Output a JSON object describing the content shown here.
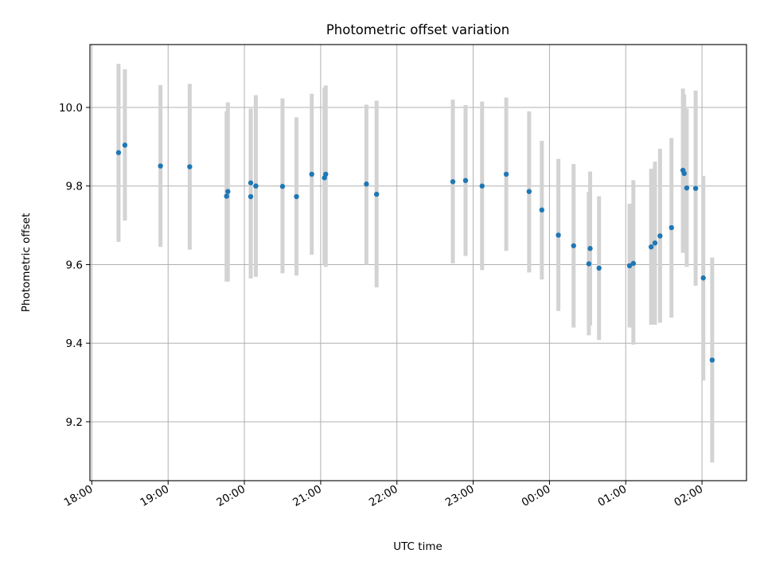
{
  "chart_data": {
    "type": "scatter",
    "title": "Photometric offset variation",
    "xlabel": "UTC time",
    "ylabel": "Photometric offset",
    "x_ticks": [
      "18:00",
      "19:00",
      "20:00",
      "21:00",
      "22:00",
      "23:00",
      "00:00",
      "01:00",
      "02:00"
    ],
    "y_ticks": [
      "9.2",
      "9.4",
      "9.6",
      "9.8",
      "10.0"
    ],
    "xlim": [
      "18:00",
      "02:30"
    ],
    "ylim": [
      9.05,
      10.16
    ],
    "grid": true,
    "colors": {
      "point": "#1f77b4",
      "errorbar": "#d3d3d3",
      "grid": "#b0b0b0"
    },
    "series": [
      {
        "points": [
          {
            "t": "18:21",
            "y": 9.885,
            "lo": 9.658,
            "hi": 10.111
          },
          {
            "t": "18:26",
            "y": 9.904,
            "lo": 9.712,
            "hi": 10.097
          },
          {
            "t": "18:54",
            "y": 9.851,
            "lo": 9.645,
            "hi": 10.057
          },
          {
            "t": "19:17",
            "y": 9.849,
            "lo": 9.638,
            "hi": 10.06
          },
          {
            "t": "19:46",
            "y": 9.774,
            "lo": 9.557,
            "hi": 9.99
          },
          {
            "t": "19:47",
            "y": 9.786,
            "lo": 9.557,
            "hi": 10.013
          },
          {
            "t": "20:05",
            "y": 9.808,
            "lo": 9.565,
            "hi": 9.997
          },
          {
            "t": "20:05",
            "y": 9.773,
            "lo": 9.565,
            "hi": 9.997
          },
          {
            "t": "20:09",
            "y": 9.8,
            "lo": 9.569,
            "hi": 10.031
          },
          {
            "t": "20:30",
            "y": 9.799,
            "lo": 9.578,
            "hi": 10.023
          },
          {
            "t": "20:41",
            "y": 9.773,
            "lo": 9.572,
            "hi": 9.975
          },
          {
            "t": "20:53",
            "y": 9.83,
            "lo": 9.625,
            "hi": 10.035
          },
          {
            "t": "21:03",
            "y": 9.821,
            "lo": 9.6,
            "hi": 10.05
          },
          {
            "t": "21:04",
            "y": 9.83,
            "lo": 9.594,
            "hi": 10.056
          },
          {
            "t": "21:36",
            "y": 9.805,
            "lo": 9.6,
            "hi": 10.007
          },
          {
            "t": "21:44",
            "y": 9.779,
            "lo": 9.542,
            "hi": 10.017
          },
          {
            "t": "22:44",
            "y": 9.811,
            "lo": 9.603,
            "hi": 10.02
          },
          {
            "t": "22:54",
            "y": 9.814,
            "lo": 9.622,
            "hi": 10.006
          },
          {
            "t": "23:07",
            "y": 9.8,
            "lo": 9.586,
            "hi": 10.015
          },
          {
            "t": "23:26",
            "y": 9.83,
            "lo": 9.635,
            "hi": 10.025
          },
          {
            "t": "23:44",
            "y": 9.786,
            "lo": 9.58,
            "hi": 9.99
          },
          {
            "t": "23:54",
            "y": 9.739,
            "lo": 9.562,
            "hi": 9.915
          },
          {
            "t": "00:07",
            "y": 9.675,
            "lo": 9.482,
            "hi": 9.869
          },
          {
            "t": "00:19",
            "y": 9.648,
            "lo": 9.44,
            "hi": 9.856
          },
          {
            "t": "00:31",
            "y": 9.602,
            "lo": 9.42,
            "hi": 9.785
          },
          {
            "t": "00:32",
            "y": 9.641,
            "lo": 9.445,
            "hi": 9.837
          },
          {
            "t": "00:39",
            "y": 9.591,
            "lo": 9.408,
            "hi": 9.774
          },
          {
            "t": "01:03",
            "y": 9.597,
            "lo": 9.44,
            "hi": 9.755
          },
          {
            "t": "01:06",
            "y": 9.603,
            "lo": 9.396,
            "hi": 9.815
          },
          {
            "t": "01:20",
            "y": 9.645,
            "lo": 9.447,
            "hi": 9.844
          },
          {
            "t": "01:23",
            "y": 9.655,
            "lo": 9.447,
            "hi": 9.862
          },
          {
            "t": "01:27",
            "y": 9.673,
            "lo": 9.452,
            "hi": 9.895
          },
          {
            "t": "01:36",
            "y": 9.694,
            "lo": 9.465,
            "hi": 9.922
          },
          {
            "t": "01:45",
            "y": 9.84,
            "lo": 9.63,
            "hi": 10.048
          },
          {
            "t": "01:46",
            "y": 9.832,
            "lo": 9.63,
            "hi": 10.033
          },
          {
            "t": "01:48",
            "y": 9.795,
            "lo": 9.594,
            "hi": 9.997
          },
          {
            "t": "01:55",
            "y": 9.794,
            "lo": 9.546,
            "hi": 10.043
          },
          {
            "t": "02:01",
            "y": 9.566,
            "lo": 9.305,
            "hi": 9.826
          },
          {
            "t": "02:08",
            "y": 9.357,
            "lo": 9.096,
            "hi": 9.618
          }
        ]
      }
    ]
  }
}
